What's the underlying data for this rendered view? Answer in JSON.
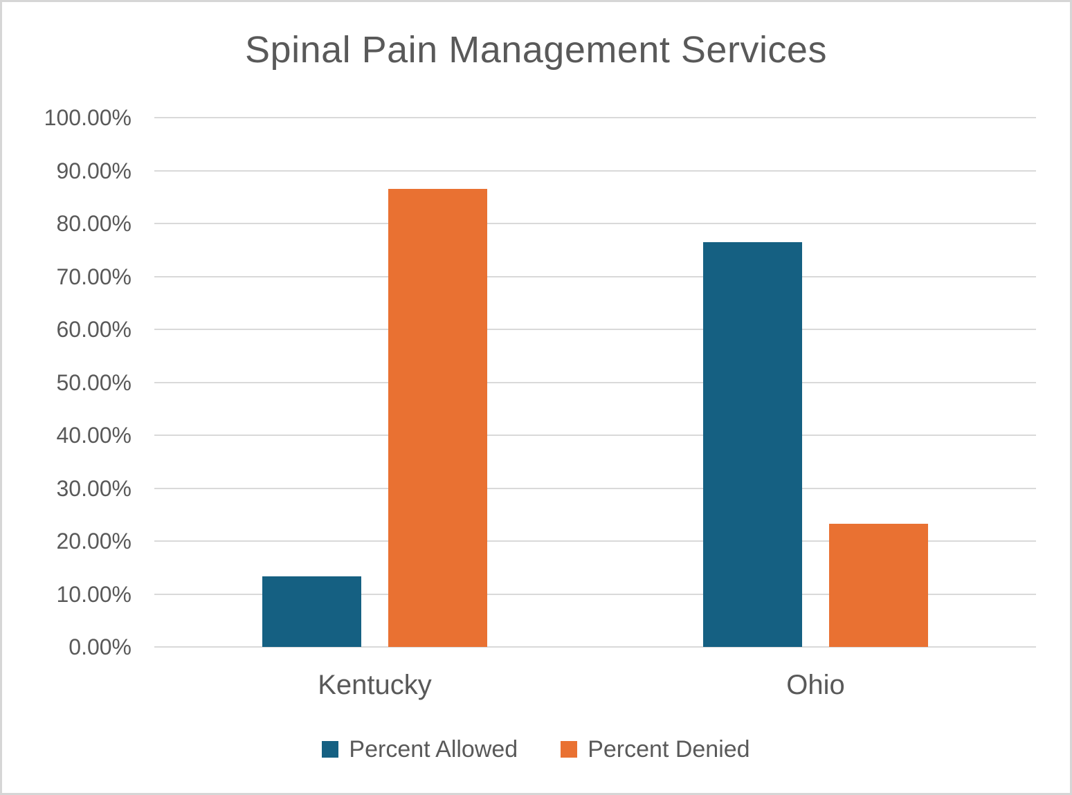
{
  "chart_data": {
    "type": "bar",
    "title": "Spinal Pain Management Services",
    "categories": [
      "Kentucky",
      "Ohio"
    ],
    "series": [
      {
        "name": "Percent Allowed",
        "color": "#156082",
        "values": [
          13.4,
          76.5
        ]
      },
      {
        "name": "Percent Denied",
        "color": "#E97132",
        "values": [
          86.6,
          23.3
        ]
      }
    ],
    "xlabel": "",
    "ylabel": "",
    "ylim": [
      0,
      100
    ],
    "ytick_step": 10,
    "yticks": [
      "100.00%",
      "90.00%",
      "80.00%",
      "70.00%",
      "60.00%",
      "50.00%",
      "40.00%",
      "30.00%",
      "20.00%",
      "10.00%",
      "0.00%"
    ],
    "grid": true,
    "legend_position": "bottom"
  },
  "colors": {
    "title_text": "#595959",
    "axis_text": "#595959",
    "gridline": "#D9D9D9",
    "frame_border": "#D6D6D6",
    "background": "#FFFFFF",
    "series_allowed": "#156082",
    "series_denied": "#E97132"
  }
}
